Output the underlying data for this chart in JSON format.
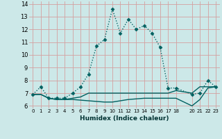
{
  "xlabel": "Humidex (Indice chaleur)",
  "bg_color": "#cce8e8",
  "grid_color": "#d4a0a0",
  "line_color": "#006060",
  "xlim": [
    -0.5,
    23.5
  ],
  "ylim": [
    5.8,
    14.2
  ],
  "xticks": [
    0,
    1,
    2,
    3,
    4,
    5,
    6,
    7,
    8,
    9,
    10,
    11,
    12,
    13,
    14,
    15,
    16,
    17,
    18,
    20,
    21,
    22,
    23
  ],
  "yticks": [
    6,
    7,
    8,
    9,
    10,
    11,
    12,
    13,
    14
  ],
  "series": [
    {
      "x": [
        0,
        1,
        2,
        3,
        4,
        5,
        6,
        7,
        8,
        9,
        10,
        11,
        12,
        13,
        14,
        15,
        16,
        17,
        18,
        20,
        21,
        22,
        23
      ],
      "y": [
        6.9,
        7.5,
        6.6,
        6.6,
        6.6,
        7.0,
        7.5,
        8.5,
        10.7,
        11.2,
        13.6,
        11.7,
        12.8,
        12.0,
        12.3,
        11.7,
        10.6,
        7.4,
        7.4,
        6.9,
        7.0,
        8.0,
        7.5
      ],
      "marker": "D",
      "markersize": 2.5,
      "linewidth": 1.0,
      "linestyle": "dotted"
    },
    {
      "x": [
        0,
        1,
        2,
        3,
        4,
        5,
        6,
        7,
        8,
        9,
        10,
        11,
        12,
        13,
        14,
        15,
        16,
        17,
        18,
        20,
        21,
        22,
        23
      ],
      "y": [
        6.9,
        6.9,
        6.6,
        6.5,
        6.5,
        6.5,
        6.45,
        6.4,
        6.35,
        6.3,
        6.3,
        6.4,
        6.5,
        6.55,
        6.6,
        6.6,
        6.6,
        6.6,
        6.6,
        6.0,
        6.5,
        7.4,
        7.5
      ],
      "marker": null,
      "linewidth": 1.0,
      "linestyle": "solid"
    },
    {
      "x": [
        0,
        1,
        2,
        3,
        4,
        5,
        6,
        7,
        8,
        9,
        10,
        11,
        12,
        13,
        14,
        15,
        16,
        17,
        18,
        20,
        21,
        22,
        23
      ],
      "y": [
        6.9,
        6.9,
        6.6,
        6.5,
        6.5,
        6.6,
        6.7,
        7.0,
        7.0,
        7.0,
        7.0,
        7.0,
        7.0,
        7.0,
        7.0,
        7.0,
        7.0,
        7.0,
        7.2,
        7.0,
        7.5,
        7.5,
        7.5
      ],
      "marker": null,
      "linewidth": 1.0,
      "linestyle": "solid"
    }
  ]
}
